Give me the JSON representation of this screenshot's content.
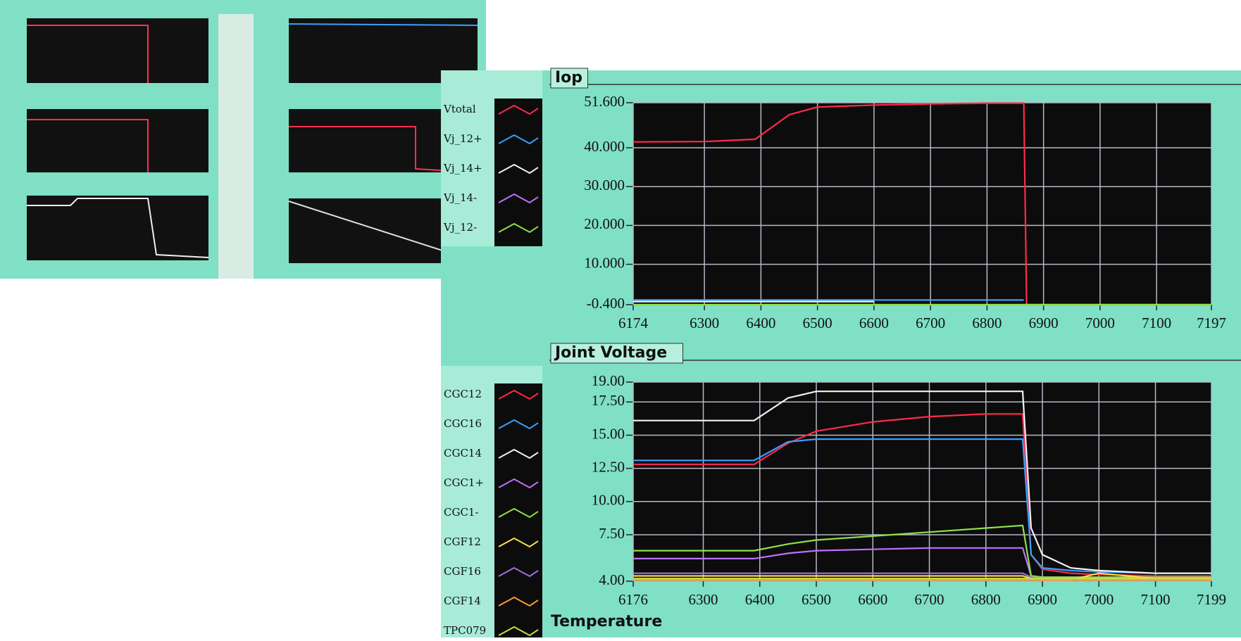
{
  "chart_data": [
    {
      "type": "line",
      "title": "Iop",
      "x": [
        6174,
        6300,
        6390,
        6450,
        6500,
        6600,
        6700,
        6800,
        6865,
        6870,
        7197
      ],
      "series": [
        {
          "name": "Vtotal",
          "color": "#ff2a4a",
          "values": [
            41.5,
            41.6,
            42.2,
            48.5,
            50.5,
            51.0,
            51.3,
            51.5,
            51.5,
            -0.4,
            -0.4
          ]
        },
        {
          "name": "Vj_12+",
          "color": "#3aa0ff",
          "values": [
            0.8,
            0.8,
            0.8,
            0.8,
            0.8,
            0.8,
            0.8,
            0.8,
            0.8,
            null,
            null
          ]
        },
        {
          "name": "Vj_14+",
          "color": "#f2f2f2",
          "values": [
            0.4,
            0.4,
            0.4,
            0.4,
            0.4,
            0.4,
            null,
            null,
            null,
            null,
            null
          ]
        },
        {
          "name": "Vj_14-",
          "color": "#c070ff",
          "values": [
            -0.4,
            -0.4,
            -0.4,
            -0.4,
            -0.4,
            -0.4,
            -0.4,
            -0.4,
            -0.4,
            -0.4,
            -0.4
          ]
        },
        {
          "name": "Vj_12-",
          "color": "#8fe04a",
          "values": [
            -0.4,
            -0.4,
            -0.4,
            -0.4,
            -0.4,
            -0.4,
            -0.4,
            -0.4,
            -0.4,
            -0.4,
            -0.4
          ]
        }
      ],
      "xlim": [
        6174,
        7197
      ],
      "xticks": [
        6174,
        6300,
        6400,
        6500,
        6600,
        6700,
        6800,
        6900,
        7000,
        7100,
        7197
      ],
      "ylim": [
        -0.4,
        51.6
      ],
      "yticks": [
        {
          "value": 51.6,
          "label": "51.600"
        },
        {
          "value": 40,
          "label": "40.000"
        },
        {
          "value": 30,
          "label": "30.000"
        },
        {
          "value": 20,
          "label": "20.000"
        },
        {
          "value": 10,
          "label": "10.000"
        },
        {
          "value": -0.4,
          "label": "-0.400"
        }
      ],
      "grid": true
    },
    {
      "type": "line",
      "title": "Joint Voltage",
      "x": [
        6176,
        6390,
        6450,
        6500,
        6600,
        6700,
        6800,
        6865,
        6880,
        6900,
        6950,
        7000,
        7100,
        7199
      ],
      "series": [
        {
          "name": "CGC12",
          "color": "#ff2a4a",
          "values": [
            12.8,
            12.8,
            14.4,
            15.3,
            16.0,
            16.4,
            16.6,
            16.6,
            6.0,
            4.9,
            4.6,
            4.5,
            4.4,
            4.4
          ]
        },
        {
          "name": "CGC16",
          "color": "#3aa0ff",
          "values": [
            13.1,
            13.1,
            14.5,
            14.7,
            14.7,
            14.7,
            14.7,
            14.7,
            6.0,
            5.0,
            4.8,
            4.7,
            4.6,
            4.6
          ]
        },
        {
          "name": "CGC14",
          "color": "#f2f2f2",
          "values": [
            16.1,
            16.1,
            17.8,
            18.3,
            18.3,
            18.3,
            18.3,
            18.3,
            8.0,
            6.0,
            5.0,
            4.8,
            4.6,
            4.6
          ]
        },
        {
          "name": "CGC1+",
          "color": "#c070ff",
          "values": [
            5.7,
            5.7,
            6.1,
            6.3,
            6.4,
            6.5,
            6.5,
            6.5,
            4.4,
            4.3,
            4.3,
            4.3,
            4.3,
            4.3
          ]
        },
        {
          "name": "CGC1-",
          "color": "#8fe04a",
          "values": [
            6.3,
            6.3,
            6.8,
            7.1,
            7.4,
            7.7,
            8.0,
            8.2,
            4.4,
            4.3,
            4.3,
            4.3,
            4.3,
            4.3
          ]
        },
        {
          "name": "CGF12",
          "color": "#ffe040",
          "values": [
            4.4,
            4.4,
            4.4,
            4.4,
            4.4,
            4.4,
            4.4,
            4.4,
            4.2,
            4.1,
            4.1,
            4.6,
            4.2,
            4.2
          ]
        },
        {
          "name": "CGF16",
          "color": "#a070e0",
          "values": [
            4.6,
            4.6,
            4.6,
            4.6,
            4.6,
            4.6,
            4.6,
            4.6,
            4.3,
            4.2,
            4.2,
            4.2,
            4.2,
            4.2
          ]
        },
        {
          "name": "CGF14",
          "color": "#ff9a30",
          "values": [
            4.1,
            4.1,
            4.1,
            4.1,
            4.1,
            4.1,
            4.1,
            4.1,
            4.1,
            4.1,
            4.1,
            4.1,
            4.1,
            4.1
          ]
        },
        {
          "name": "TPC079",
          "color": "#c8e040",
          "values": [
            4.2,
            4.2,
            4.2,
            4.2,
            4.2,
            4.2,
            4.2,
            4.2,
            4.2,
            4.2,
            4.2,
            4.2,
            4.2,
            4.2
          ]
        }
      ],
      "xlim": [
        6176,
        7199
      ],
      "xticks": [
        6176,
        6300,
        6400,
        6500,
        6600,
        6700,
        6800,
        6900,
        7000,
        7100,
        7199
      ],
      "ylim": [
        4,
        19
      ],
      "yticks": [
        {
          "value": 19,
          "label": "19.00"
        },
        {
          "value": 17.5,
          "label": "17.50"
        },
        {
          "value": 15,
          "label": "15.00"
        },
        {
          "value": 12.5,
          "label": "12.50"
        },
        {
          "value": 10,
          "label": "10.00"
        },
        {
          "value": 7.5,
          "label": "7.50"
        },
        {
          "value": 4,
          "label": "4.00"
        }
      ],
      "grid": true
    }
  ],
  "next_panel_title": "Temperature"
}
